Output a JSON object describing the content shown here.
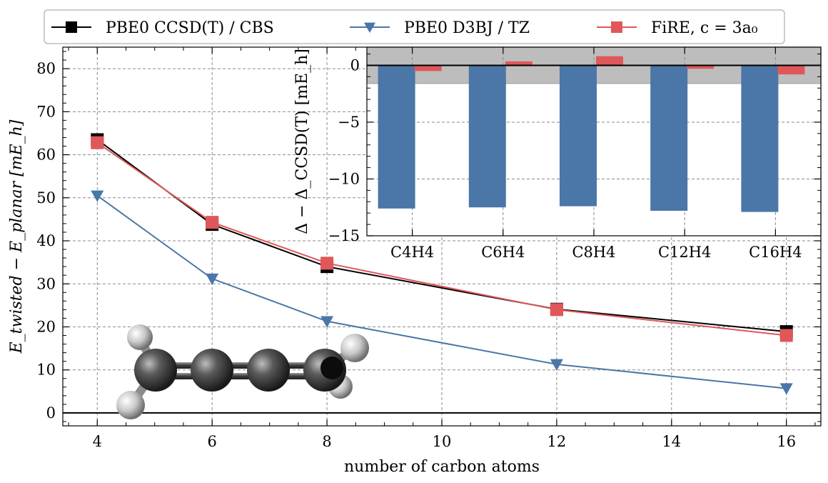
{
  "legend": {
    "items": [
      {
        "label": "PBE0 CCSD(T) / CBS",
        "color": "#000000",
        "marker": "square"
      },
      {
        "label": "PBE0 D3BJ / TZ",
        "color": "#4a76a8",
        "marker": "triangle-down"
      },
      {
        "label": "FiRE, c = 3a₀",
        "color": "#e0575a",
        "marker": "square"
      }
    ]
  },
  "chart_data": [
    {
      "type": "line",
      "title": "",
      "xlabel": "number of carbon atoms",
      "ylabel": "E_twisted − E_planar [mE_h]",
      "xlim": [
        3.4,
        16.6
      ],
      "ylim": [
        -3,
        85
      ],
      "xticks": [
        4,
        6,
        8,
        10,
        12,
        14,
        16
      ],
      "yticks": [
        0,
        10,
        20,
        30,
        40,
        50,
        60,
        70,
        80
      ],
      "x": [
        4,
        6,
        8,
        12,
        16
      ],
      "grid": true,
      "legend_position": "top-outside",
      "series": [
        {
          "name": "PBE0 CCSD(T) / CBS",
          "color": "#000000",
          "marker": "square",
          "values": [
            63.5,
            43.8,
            34.0,
            24.1,
            18.9
          ]
        },
        {
          "name": "PBE0 D3BJ / TZ",
          "color": "#4a76a8",
          "marker": "triangle-down",
          "values": [
            50.5,
            31.2,
            21.3,
            11.3,
            5.7
          ]
        },
        {
          "name": "FiRE, c = 3a₀",
          "color": "#e0575a",
          "marker": "square",
          "values": [
            62.8,
            44.3,
            34.8,
            24.0,
            18.0
          ]
        }
      ]
    },
    {
      "type": "bar",
      "title": "",
      "xlabel": "",
      "ylabel": "Δ − Δ_CCSD(T) [mE_h]",
      "categories": [
        "C4H4",
        "C6H4",
        "C8H4",
        "C12H4",
        "C16H4"
      ],
      "ylim": [
        -15,
        1.6
      ],
      "yticks": [
        0,
        -5,
        -10,
        -15
      ],
      "band": [
        -1.6,
        1.6
      ],
      "grid": true,
      "series": [
        {
          "name": "PBE0 D3BJ / TZ",
          "color": "#4a76a8",
          "values": [
            -12.6,
            -12.5,
            -12.4,
            -12.8,
            -12.9
          ]
        },
        {
          "name": "FiRE, c = 3a₀",
          "color": "#e0575a",
          "values": [
            -0.5,
            0.35,
            0.8,
            -0.3,
            -0.8
          ]
        }
      ]
    }
  ]
}
